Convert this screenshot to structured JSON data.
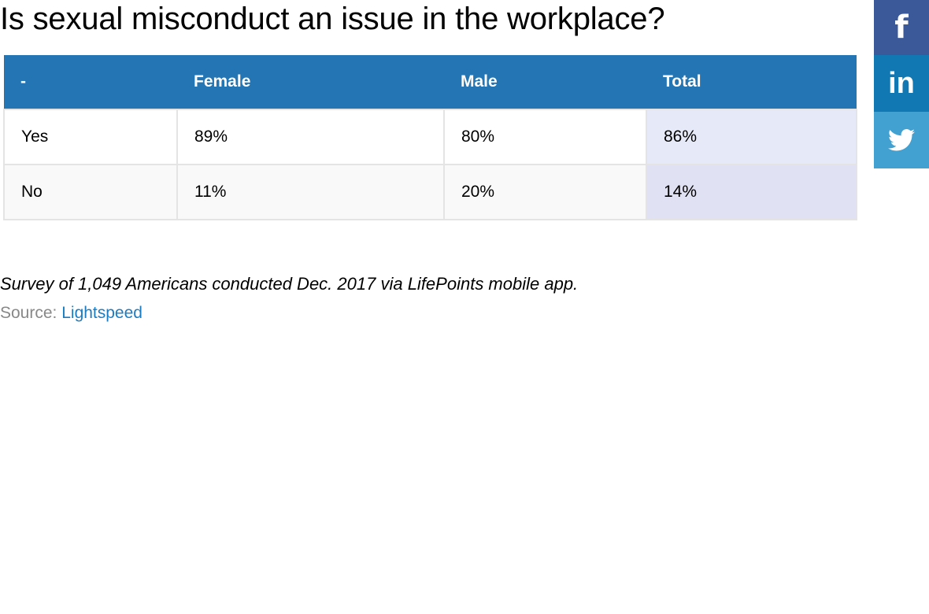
{
  "title": "Is sexual misconduct an issue in the workplace?",
  "table": {
    "headers": [
      "-",
      "Female",
      "Male",
      "Total"
    ],
    "rows": [
      [
        "Yes",
        "89%",
        "80%",
        "86%"
      ],
      [
        "No",
        "11%",
        "20%",
        "14%"
      ]
    ]
  },
  "note": "Survey of 1,049 Americans conducted Dec. 2017 via LifePoints mobile app.",
  "source": {
    "label": "Source:",
    "link": "Lightspeed"
  },
  "social": [
    {
      "icon": "facebook-icon",
      "glyph": "f",
      "color": "#3b5998"
    },
    {
      "icon": "linkedin-icon",
      "glyph": "in",
      "color": "#1178b3"
    },
    {
      "icon": "twitter-icon",
      "glyph": "",
      "color": "#42a1d0"
    }
  ]
}
